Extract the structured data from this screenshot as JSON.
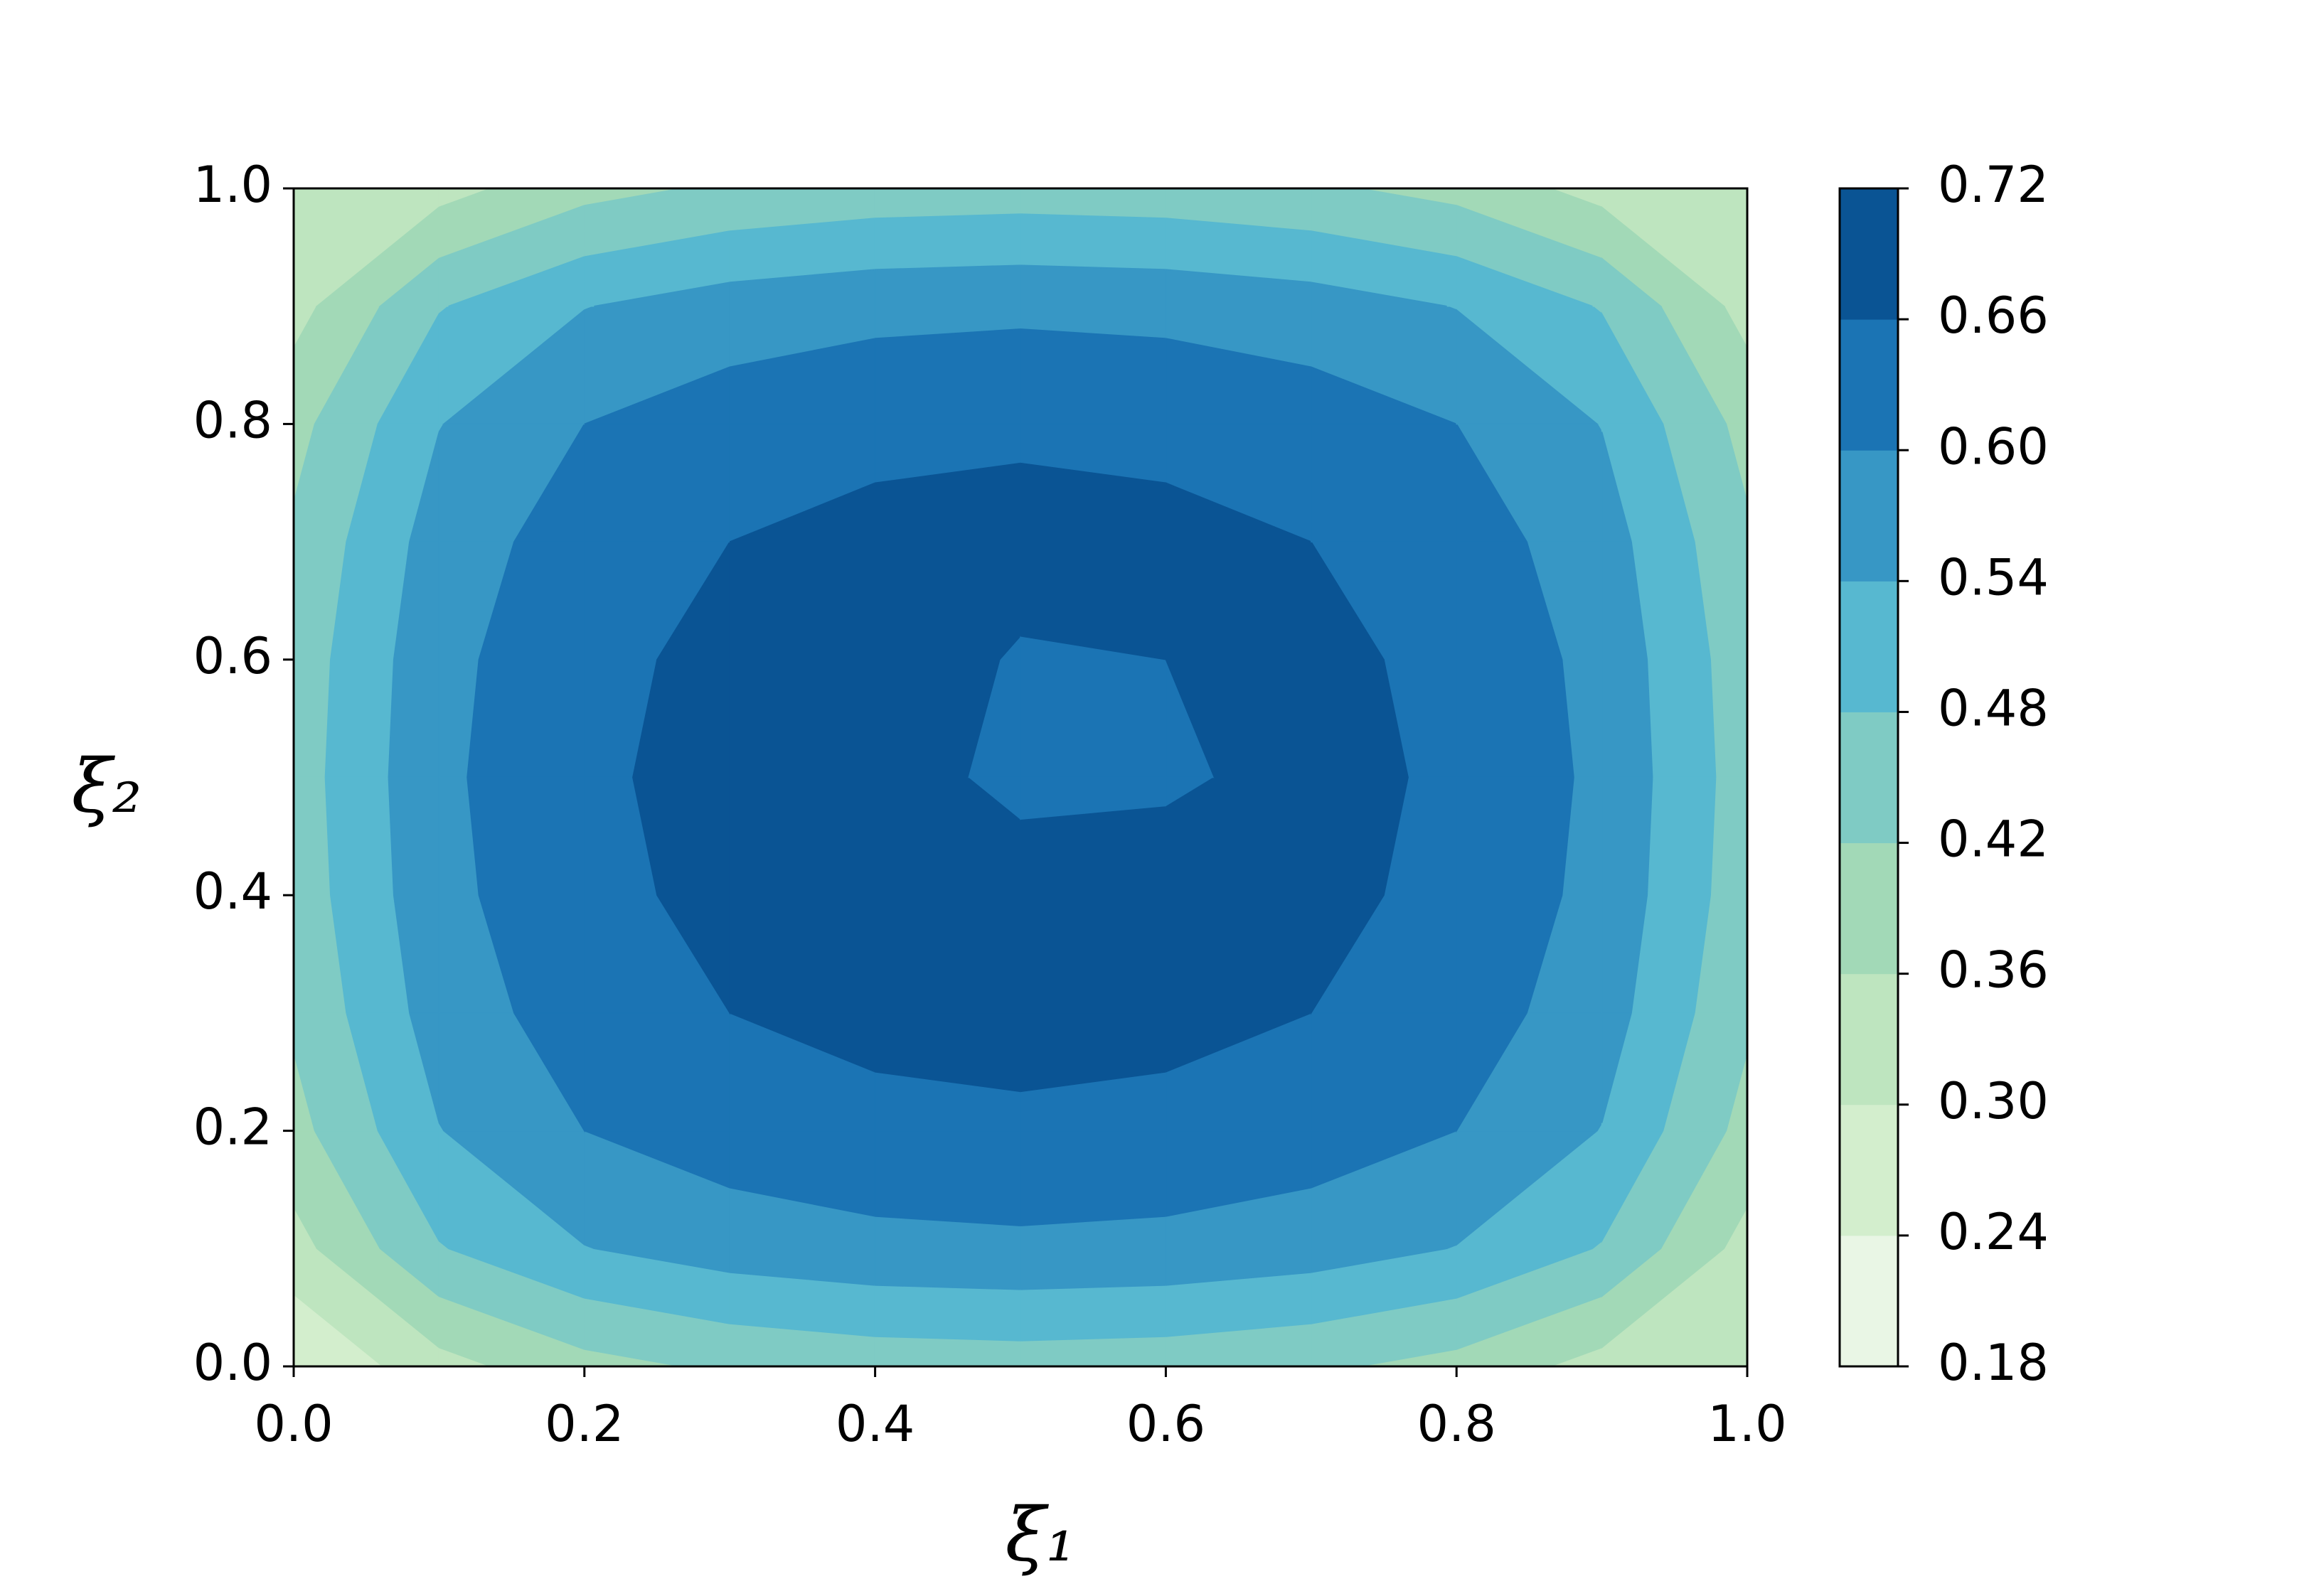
{
  "chart_data": {
    "type": "contour",
    "xlabel": "ξ₁",
    "ylabel": "ξ₂",
    "x": [
      0,
      0.1,
      0.2,
      0.3,
      0.4,
      0.5,
      0.6,
      0.7,
      0.8,
      0.9,
      1
    ],
    "y": [
      0,
      0.1,
      0.2,
      0.3,
      0.4,
      0.5,
      0.6,
      0.7,
      0.8,
      0.9,
      1
    ],
    "z": [
      [
        0.24,
        0.338,
        0.4,
        0.43,
        0.445,
        0.45,
        0.445,
        0.43,
        0.4,
        0.338,
        0.3
      ],
      [
        0.338,
        0.476,
        0.538,
        0.568,
        0.583,
        0.588,
        0.583,
        0.568,
        0.538,
        0.476,
        0.338
      ],
      [
        0.4,
        0.538,
        0.6,
        0.63,
        0.645,
        0.65,
        0.645,
        0.63,
        0.6,
        0.538,
        0.4
      ],
      [
        0.43,
        0.568,
        0.63,
        0.66,
        0.675,
        0.68,
        0.675,
        0.66,
        0.63,
        0.568,
        0.43
      ],
      [
        0.445,
        0.583,
        0.645,
        0.675,
        0.69,
        0.695,
        0.69,
        0.675,
        0.645,
        0.583,
        0.445
      ],
      [
        0.45,
        0.588,
        0.65,
        0.68,
        0.695,
        0.64,
        0.65,
        0.68,
        0.65,
        0.588,
        0.45
      ],
      [
        0.445,
        0.583,
        0.645,
        0.675,
        0.69,
        0.655,
        0.66,
        0.675,
        0.645,
        0.583,
        0.445
      ],
      [
        0.43,
        0.568,
        0.63,
        0.66,
        0.675,
        0.68,
        0.675,
        0.66,
        0.63,
        0.568,
        0.43
      ],
      [
        0.4,
        0.538,
        0.6,
        0.63,
        0.645,
        0.65,
        0.645,
        0.63,
        0.6,
        0.538,
        0.4
      ],
      [
        0.338,
        0.476,
        0.538,
        0.568,
        0.583,
        0.588,
        0.583,
        0.568,
        0.538,
        0.476,
        0.338
      ],
      [
        0.3,
        0.338,
        0.4,
        0.43,
        0.445,
        0.45,
        0.445,
        0.43,
        0.4,
        0.338,
        0.33
      ]
    ],
    "levels": [
      0.18,
      0.24,
      {
        "value": 0.3,
        "label": "0.30"
      },
      0.36,
      0.42,
      0.48,
      0.54,
      {
        "value": 0.6,
        "label": "0.60"
      },
      0.66,
      0.72
    ],
    "colors": [
      "#e9f6e5",
      "#d3eecd",
      "#bee5bf",
      "#a2d9b7",
      "#7fcbc4",
      "#57b8d0",
      "#3797c5",
      "#1b74b4",
      "#0a5494"
    ],
    "xlim": [
      0,
      1
    ],
    "ylim": [
      0,
      1
    ],
    "xticks": [
      {
        "value": 0,
        "label": "0.0"
      },
      0.2,
      0.4,
      0.6,
      0.8,
      {
        "value": 1,
        "label": "1.0"
      }
    ],
    "yticks": [
      {
        "value": 0,
        "label": "0.0"
      },
      0.2,
      0.4,
      0.6,
      0.8,
      {
        "value": 1,
        "label": "1.0"
      }
    ]
  }
}
